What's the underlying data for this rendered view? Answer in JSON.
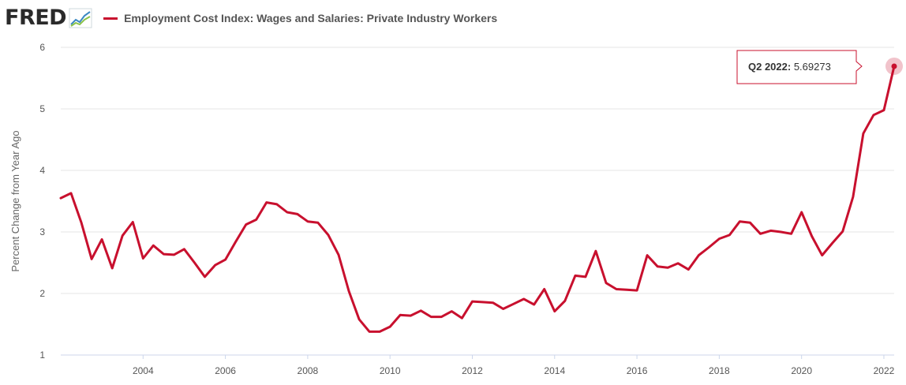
{
  "header": {
    "logo_text": "FRED",
    "logo_icon": "trend-chart-icon",
    "series_title": "Employment Cost Index: Wages and Salaries: Private Industry Workers"
  },
  "colors": {
    "series": "#c8102e",
    "grid": "#e6e6e6",
    "axis_text": "#555555"
  },
  "chart_data": {
    "type": "line",
    "title": "Employment Cost Index: Wages and Salaries: Private Industry Workers",
    "ylabel": "Percent Change from Year Ago",
    "xlabel": "",
    "ylim": [
      1,
      6
    ],
    "yticks": [
      1,
      2,
      3,
      4,
      5,
      6
    ],
    "xlim": [
      2002.0,
      2022.25
    ],
    "xticks": [
      2004,
      2006,
      2008,
      2010,
      2012,
      2014,
      2016,
      2018,
      2020,
      2022
    ],
    "xtick_labels": [
      "2004",
      "2006",
      "2008",
      "2010",
      "2012",
      "2014",
      "2016",
      "2018",
      "2020",
      "2022"
    ],
    "grid": true,
    "legend_position": "top-left",
    "series": [
      {
        "name": "Employment Cost Index: Wages and Salaries: Private Industry Workers",
        "x": [
          2002.0,
          2002.25,
          2002.5,
          2002.75,
          2003.0,
          2003.25,
          2003.5,
          2003.75,
          2004.0,
          2004.25,
          2004.5,
          2004.75,
          2005.0,
          2005.25,
          2005.5,
          2005.75,
          2006.0,
          2006.25,
          2006.5,
          2006.75,
          2007.0,
          2007.25,
          2007.5,
          2007.75,
          2008.0,
          2008.25,
          2008.5,
          2008.75,
          2009.0,
          2009.25,
          2009.5,
          2009.75,
          2010.0,
          2010.25,
          2010.5,
          2010.75,
          2011.0,
          2011.25,
          2011.5,
          2011.75,
          2012.0,
          2012.25,
          2012.5,
          2012.75,
          2013.0,
          2013.25,
          2013.5,
          2013.75,
          2014.0,
          2014.25,
          2014.5,
          2014.75,
          2015.0,
          2015.25,
          2015.5,
          2015.75,
          2016.0,
          2016.25,
          2016.5,
          2016.75,
          2017.0,
          2017.25,
          2017.5,
          2017.75,
          2018.0,
          2018.25,
          2018.5,
          2018.75,
          2019.0,
          2019.25,
          2019.5,
          2019.75,
          2020.0,
          2020.25,
          2020.5,
          2020.75,
          2021.0,
          2021.25,
          2021.5,
          2021.75,
          2022.0,
          2022.25
        ],
        "values": [
          3.55,
          3.63,
          3.15,
          2.56,
          2.88,
          2.41,
          2.94,
          3.16,
          2.57,
          2.78,
          2.64,
          2.63,
          2.72,
          2.5,
          2.27,
          2.46,
          2.55,
          2.84,
          3.12,
          3.2,
          3.48,
          3.45,
          3.32,
          3.29,
          3.17,
          3.15,
          2.95,
          2.63,
          2.04,
          1.58,
          1.38,
          1.38,
          1.46,
          1.65,
          1.64,
          1.72,
          1.62,
          1.62,
          1.71,
          1.6,
          1.87,
          1.86,
          1.85,
          1.75,
          1.83,
          1.91,
          1.82,
          2.07,
          1.71,
          1.88,
          2.29,
          2.27,
          2.69,
          2.17,
          2.07,
          2.06,
          2.05,
          2.62,
          2.44,
          2.42,
          2.49,
          2.39,
          2.62,
          2.75,
          2.89,
          2.95,
          3.17,
          3.15,
          2.97,
          3.02,
          3.0,
          2.97,
          3.32,
          2.93,
          2.62,
          2.82,
          3.01,
          3.57,
          4.6,
          4.9,
          4.98,
          5.69273
        ]
      }
    ],
    "highlight": {
      "label": "Q2 2022:",
      "value": "5.69273",
      "x": 2022.25,
      "y": 5.69273
    }
  }
}
